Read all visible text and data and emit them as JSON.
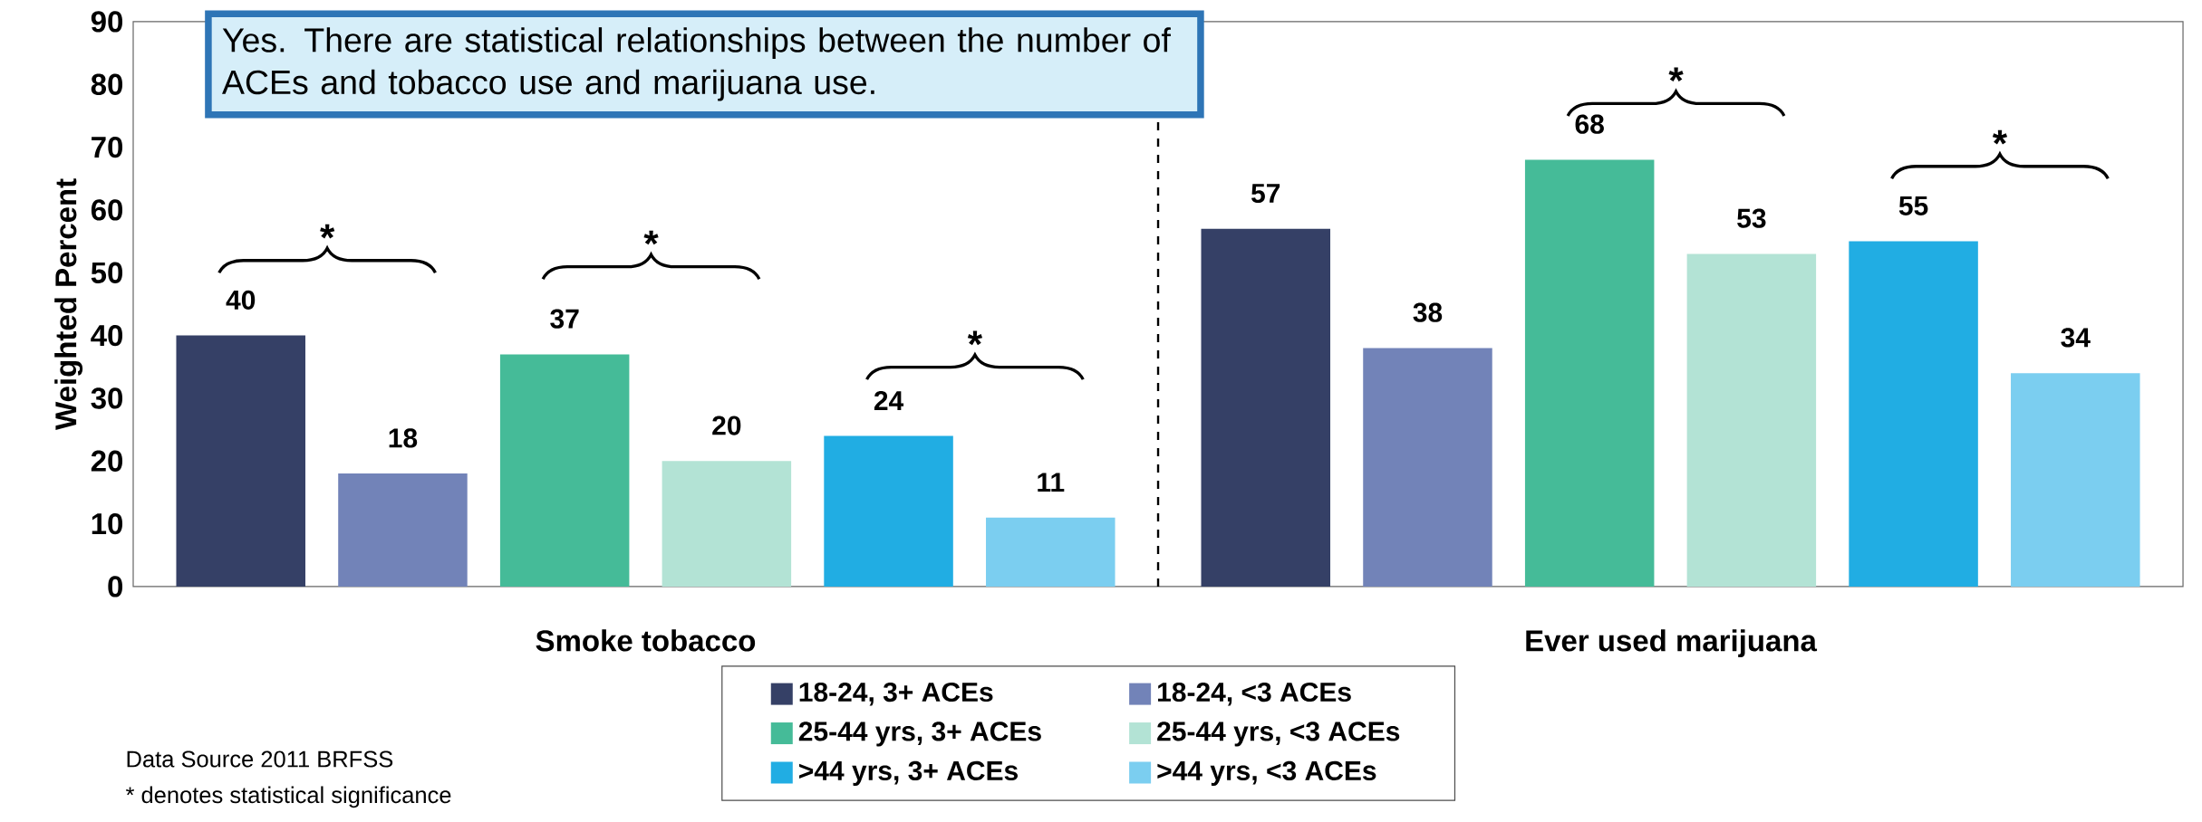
{
  "chart_data": {
    "type": "bar",
    "ylabel": "Weighted Percent",
    "categories": [
      "Smoke tobacco",
      "Ever used marijuana"
    ],
    "series": [
      {
        "name": "18-24, 3+ ACEs",
        "color": "#354066",
        "values": [
          40,
          57
        ]
      },
      {
        "name": "18-24, <3 ACEs",
        "color": "#7283b8",
        "values": [
          18,
          38
        ]
      },
      {
        "name": "25-44 yrs, 3+ ACEs",
        "color": "#45bb98",
        "values": [
          37,
          68
        ]
      },
      {
        "name": "25-44 yrs, <3 ACEs",
        "color": "#b3e3d5",
        "values": [
          20,
          53
        ]
      },
      {
        "name": ">44 yrs, 3+ ACEs",
        "color": "#21ade3",
        "values": [
          24,
          55
        ]
      },
      {
        "name": ">44 yrs, <3 ACEs",
        "color": "#7bcef0",
        "values": [
          11,
          34
        ]
      }
    ],
    "ylim": [
      0,
      90
    ],
    "yticks": [
      0,
      10,
      20,
      30,
      40,
      50,
      60,
      70,
      80,
      90
    ],
    "data_labels": true,
    "legend": "bottom",
    "grid": false,
    "annotations": [
      "Yes.  There are statistical relationships between the number of ACEs and tobacco use and marijuana use.",
      "Data Source 2011 BRFSS",
      "* denotes statistical significance",
      "*",
      "*",
      "*",
      "*",
      "*"
    ]
  }
}
